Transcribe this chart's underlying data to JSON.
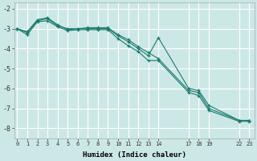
{
  "xlabel": "Humidex (Indice chaleur)",
  "bg_color": "#cce8e6",
  "grid_color": "#ffffff",
  "line_color": "#1a7a6e",
  "xtick_positions": [
    0,
    1,
    2,
    3,
    4,
    5,
    6,
    7,
    8,
    9,
    10,
    11,
    12,
    13,
    14,
    17,
    18,
    19,
    22,
    23
  ],
  "xtick_labels": [
    "0",
    "1",
    "2",
    "3",
    "4",
    "5",
    "6",
    "7",
    "8",
    "9",
    "10",
    "11",
    "12",
    "13",
    "14",
    "17",
    "18",
    "19",
    "22",
    "23"
  ],
  "yticks": [
    -2,
    -3,
    -4,
    -5,
    -6,
    -7,
    -8
  ],
  "ylim": [
    -8.5,
    -1.7
  ],
  "xlim": [
    -0.3,
    23.5
  ],
  "series": [
    {
      "x": [
        0,
        1,
        2,
        3,
        4,
        5,
        6,
        7,
        8,
        9,
        10,
        11,
        12,
        13,
        14,
        17,
        18,
        19,
        22,
        23
      ],
      "y": [
        -3.0,
        -3.2,
        -2.6,
        -2.5,
        -2.85,
        -3.0,
        -3.0,
        -3.0,
        -3.0,
        -3.0,
        -3.35,
        -3.65,
        -4.0,
        -4.35,
        -3.45,
        -6.0,
        -6.1,
        -6.85,
        -7.6,
        -7.6
      ]
    },
    {
      "x": [
        0,
        1,
        2,
        3,
        4,
        5,
        6,
        7,
        8,
        9,
        10,
        11,
        12,
        13,
        14,
        17,
        18,
        19,
        22,
        23
      ],
      "y": [
        -3.0,
        -3.3,
        -2.65,
        -2.6,
        -2.9,
        -3.1,
        -3.05,
        -3.05,
        -3.05,
        -3.05,
        -3.5,
        -3.85,
        -4.15,
        -4.6,
        -4.6,
        -6.2,
        -6.35,
        -7.1,
        -7.65,
        -7.65
      ]
    },
    {
      "x": [
        0,
        1,
        2,
        3,
        4,
        5,
        6,
        7,
        8,
        9,
        10,
        11,
        12,
        13,
        14,
        17,
        18,
        19,
        22,
        23
      ],
      "y": [
        -3.0,
        -3.15,
        -2.55,
        -2.45,
        -2.8,
        -3.05,
        -3.0,
        -2.95,
        -2.95,
        -2.95,
        -3.3,
        -3.55,
        -3.9,
        -4.2,
        -4.5,
        -6.1,
        -6.2,
        -7.0,
        -7.6,
        -7.6
      ]
    }
  ]
}
